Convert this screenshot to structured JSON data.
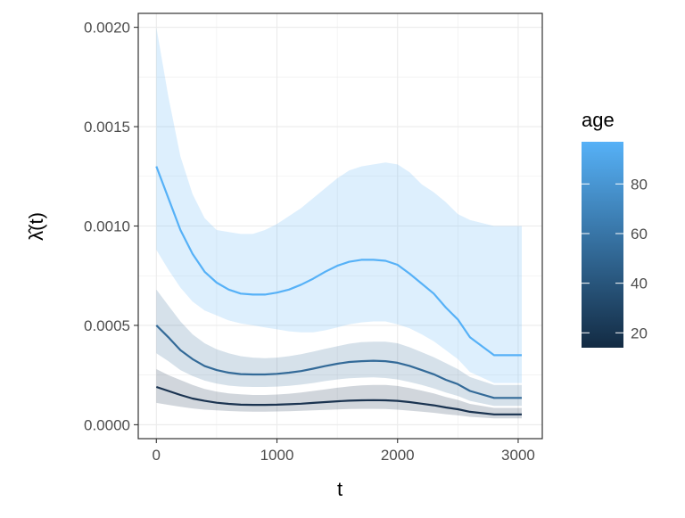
{
  "chart_data": {
    "type": "line",
    "xlabel": "t",
    "ylabel": "λ̂(t)",
    "xlim": [
      -150,
      3200
    ],
    "ylim": [
      -7e-05,
      0.00207
    ],
    "x_ticks": [
      0,
      1000,
      2000,
      3000
    ],
    "x_tick_labels": [
      "0",
      "1000",
      "2000",
      "3000"
    ],
    "y_ticks": [
      0,
      0.0005,
      0.001,
      0.0015,
      0.002
    ],
    "y_tick_labels": [
      "0.0000",
      "0.0005",
      "0.0010",
      "0.0015",
      "0.0020"
    ],
    "grid": true,
    "legend": {
      "title": "age",
      "type": "colorbar",
      "placement": "right",
      "range": [
        14,
        97
      ],
      "ticks": [
        20,
        40,
        60,
        80
      ],
      "tick_labels": [
        "20",
        "40",
        "60",
        "80"
      ],
      "color_low": "#132B43",
      "color_high": "#56B1F7"
    },
    "series": [
      {
        "age": 97,
        "color": "#56B1F7",
        "points": [
          [
            0,
            0.0013
          ],
          [
            100,
            0.00114
          ],
          [
            200,
            0.00098
          ],
          [
            300,
            0.00086
          ],
          [
            400,
            0.00077
          ],
          [
            500,
            0.000715
          ],
          [
            600,
            0.00068
          ],
          [
            700,
            0.00066
          ],
          [
            800,
            0.000655
          ],
          [
            900,
            0.000655
          ],
          [
            1000,
            0.000665
          ],
          [
            1100,
            0.00068
          ],
          [
            1200,
            0.000705
          ],
          [
            1300,
            0.000735
          ],
          [
            1400,
            0.00077
          ],
          [
            1500,
            0.0008
          ],
          [
            1600,
            0.00082
          ],
          [
            1700,
            0.00083
          ],
          [
            1800,
            0.00083
          ],
          [
            1900,
            0.000825
          ],
          [
            2000,
            0.000805
          ],
          [
            2100,
            0.00076
          ],
          [
            2200,
            0.00071
          ],
          [
            2300,
            0.00066
          ],
          [
            2400,
            0.00059
          ],
          [
            2500,
            0.00053
          ],
          [
            2600,
            0.00044
          ],
          [
            2800,
            0.00035
          ],
          [
            3030,
            0.00035
          ]
        ],
        "upper": [
          [
            0,
            0.002
          ],
          [
            100,
            0.00165
          ],
          [
            200,
            0.00135
          ],
          [
            300,
            0.00116
          ],
          [
            400,
            0.00104
          ],
          [
            500,
            0.00098
          ],
          [
            600,
            0.00097
          ],
          [
            700,
            0.00096
          ],
          [
            800,
            0.00096
          ],
          [
            900,
            0.00098
          ],
          [
            1000,
            0.00101
          ],
          [
            1100,
            0.00105
          ],
          [
            1200,
            0.00109
          ],
          [
            1300,
            0.00114
          ],
          [
            1400,
            0.00119
          ],
          [
            1500,
            0.00124
          ],
          [
            1600,
            0.00128
          ],
          [
            1700,
            0.0013
          ],
          [
            1800,
            0.00131
          ],
          [
            1900,
            0.00132
          ],
          [
            2000,
            0.00131
          ],
          [
            2100,
            0.00127
          ],
          [
            2200,
            0.00121
          ],
          [
            2300,
            0.00117
          ],
          [
            2400,
            0.00112
          ],
          [
            2500,
            0.00106
          ],
          [
            2600,
            0.00103
          ],
          [
            2800,
            0.001
          ],
          [
            3030,
            0.001
          ]
        ],
        "lower": [
          [
            0,
            0.00088
          ],
          [
            100,
            0.00078
          ],
          [
            200,
            0.00069
          ],
          [
            300,
            0.00062
          ],
          [
            400,
            0.000575
          ],
          [
            500,
            0.00055
          ],
          [
            600,
            0.000525
          ],
          [
            700,
            0.00051
          ],
          [
            800,
            0.0005
          ],
          [
            900,
            0.00049
          ],
          [
            1000,
            0.00048
          ],
          [
            1100,
            0.00047
          ],
          [
            1200,
            0.000465
          ],
          [
            1300,
            0.000465
          ],
          [
            1400,
            0.000475
          ],
          [
            1500,
            0.00049
          ],
          [
            1600,
            0.000505
          ],
          [
            1700,
            0.000515
          ],
          [
            1800,
            0.00052
          ],
          [
            1900,
            0.00052
          ],
          [
            2000,
            0.000505
          ],
          [
            2100,
            0.000485
          ],
          [
            2200,
            0.000455
          ],
          [
            2300,
            0.00042
          ],
          [
            2400,
            0.000375
          ],
          [
            2500,
            0.00033
          ],
          [
            2600,
            0.000265
          ],
          [
            2800,
            0.00021
          ],
          [
            3030,
            0.00021
          ]
        ]
      },
      {
        "age": 60,
        "color": "#336A98",
        "points": [
          [
            0,
            0.0005
          ],
          [
            100,
            0.00044
          ],
          [
            200,
            0.000375
          ],
          [
            300,
            0.00033
          ],
          [
            400,
            0.000295
          ],
          [
            500,
            0.000275
          ],
          [
            600,
            0.000262
          ],
          [
            700,
            0.000255
          ],
          [
            800,
            0.000253
          ],
          [
            900,
            0.000253
          ],
          [
            1000,
            0.000256
          ],
          [
            1100,
            0.000262
          ],
          [
            1200,
            0.00027
          ],
          [
            1300,
            0.000282
          ],
          [
            1400,
            0.000295
          ],
          [
            1500,
            0.000307
          ],
          [
            1600,
            0.000316
          ],
          [
            1700,
            0.00032
          ],
          [
            1800,
            0.000322
          ],
          [
            1900,
            0.00032
          ],
          [
            2000,
            0.000312
          ],
          [
            2100,
            0.000296
          ],
          [
            2200,
            0.000275
          ],
          [
            2300,
            0.000254
          ],
          [
            2400,
            0.000226
          ],
          [
            2500,
            0.000204
          ],
          [
            2600,
            0.00017
          ],
          [
            2800,
            0.000135
          ],
          [
            3030,
            0.000135
          ]
        ],
        "upper": [
          [
            0,
            0.00068
          ],
          [
            100,
            0.0006
          ],
          [
            200,
            0.00052
          ],
          [
            300,
            0.000455
          ],
          [
            400,
            0.00041
          ],
          [
            500,
            0.00038
          ],
          [
            600,
            0.00036
          ],
          [
            700,
            0.000345
          ],
          [
            800,
            0.000338
          ],
          [
            900,
            0.000335
          ],
          [
            1000,
            0.000338
          ],
          [
            1100,
            0.000345
          ],
          [
            1200,
            0.000355
          ],
          [
            1300,
            0.000368
          ],
          [
            1400,
            0.000382
          ],
          [
            1500,
            0.000395
          ],
          [
            1600,
            0.000408
          ],
          [
            1700,
            0.000416
          ],
          [
            1800,
            0.000418
          ],
          [
            1900,
            0.000418
          ],
          [
            2000,
            0.00041
          ],
          [
            2100,
            0.00039
          ],
          [
            2200,
            0.000365
          ],
          [
            2300,
            0.00034
          ],
          [
            2400,
            0.00031
          ],
          [
            2500,
            0.00028
          ],
          [
            2600,
            0.00024
          ],
          [
            2800,
            0.0002
          ],
          [
            3030,
            0.0002
          ]
        ],
        "lower": [
          [
            0,
            0.00036
          ],
          [
            100,
            0.00032
          ],
          [
            200,
            0.000275
          ],
          [
            300,
            0.000245
          ],
          [
            400,
            0.000222
          ],
          [
            500,
            0.000207
          ],
          [
            600,
            0.000197
          ],
          [
            700,
            0.000192
          ],
          [
            800,
            0.00019
          ],
          [
            900,
            0.00019
          ],
          [
            1000,
            0.000192
          ],
          [
            1100,
            0.000196
          ],
          [
            1200,
            0.000202
          ],
          [
            1300,
            0.00021
          ],
          [
            1400,
            0.00022
          ],
          [
            1500,
            0.000228
          ],
          [
            1600,
            0.000234
          ],
          [
            1700,
            0.000237
          ],
          [
            1800,
            0.000238
          ],
          [
            1900,
            0.000235
          ],
          [
            2000,
            0.000228
          ],
          [
            2100,
            0.000215
          ],
          [
            2200,
            0.0002
          ],
          [
            2300,
            0.000183
          ],
          [
            2400,
            0.000162
          ],
          [
            2500,
            0.000145
          ],
          [
            2600,
            0.00012
          ],
          [
            2800,
            9.5e-05
          ],
          [
            3030,
            9.5e-05
          ]
        ]
      },
      {
        "age": 20,
        "color": "#1A3350",
        "points": [
          [
            0,
            0.00019
          ],
          [
            100,
            0.00017
          ],
          [
            200,
            0.00015
          ],
          [
            300,
            0.000132
          ],
          [
            400,
            0.00012
          ],
          [
            500,
            0.000111
          ],
          [
            600,
            0.000105
          ],
          [
            700,
            0.000101
          ],
          [
            800,
            0.0001
          ],
          [
            900,
            0.0001
          ],
          [
            1000,
            0.000101
          ],
          [
            1100,
            0.000103
          ],
          [
            1200,
            0.000106
          ],
          [
            1300,
            0.00011
          ],
          [
            1400,
            0.000114
          ],
          [
            1500,
            0.000118
          ],
          [
            1600,
            0.000121
          ],
          [
            1700,
            0.000123
          ],
          [
            1800,
            0.000124
          ],
          [
            1900,
            0.000123
          ],
          [
            2000,
            0.00012
          ],
          [
            2100,
            0.000114
          ],
          [
            2200,
            0.000106
          ],
          [
            2300,
            9.8e-05
          ],
          [
            2400,
            8.7e-05
          ],
          [
            2500,
            7.8e-05
          ],
          [
            2600,
            6.5e-05
          ],
          [
            2800,
            5.2e-05
          ],
          [
            3030,
            5.2e-05
          ]
        ],
        "upper": [
          [
            0,
            0.00028
          ],
          [
            100,
            0.00025
          ],
          [
            200,
            0.000225
          ],
          [
            300,
            0.0002
          ],
          [
            400,
            0.00018
          ],
          [
            500,
            0.000167
          ],
          [
            600,
            0.000158
          ],
          [
            700,
            0.000153
          ],
          [
            800,
            0.00015
          ],
          [
            900,
            0.00015
          ],
          [
            1000,
            0.000152
          ],
          [
            1100,
            0.000156
          ],
          [
            1200,
            0.000162
          ],
          [
            1300,
            0.00017
          ],
          [
            1400,
            0.000178
          ],
          [
            1500,
            0.000186
          ],
          [
            1600,
            0.000193
          ],
          [
            1700,
            0.000198
          ],
          [
            1800,
            0.0002
          ],
          [
            1900,
            0.0002
          ],
          [
            2000,
            0.000195
          ],
          [
            2100,
            0.000185
          ],
          [
            2200,
            0.000172
          ],
          [
            2300,
            0.000158
          ],
          [
            2400,
            0.00014
          ],
          [
            2500,
            0.000125
          ],
          [
            2600,
            0.000105
          ],
          [
            2800,
            8.5e-05
          ],
          [
            3030,
            8.5e-05
          ]
        ],
        "lower": [
          [
            0,
            0.00011
          ],
          [
            100,
            0.0001
          ],
          [
            200,
            9e-05
          ],
          [
            300,
            8.2e-05
          ],
          [
            400,
            7.6e-05
          ],
          [
            500,
            7.2e-05
          ],
          [
            600,
            6.9e-05
          ],
          [
            700,
            6.7e-05
          ],
          [
            800,
            6.6e-05
          ],
          [
            900,
            6.6e-05
          ],
          [
            1000,
            6.7e-05
          ],
          [
            1100,
            6.8e-05
          ],
          [
            1200,
            7e-05
          ],
          [
            1300,
            7.2e-05
          ],
          [
            1400,
            7.5e-05
          ],
          [
            1500,
            7.7e-05
          ],
          [
            1600,
            7.9e-05
          ],
          [
            1700,
            8e-05
          ],
          [
            1800,
            8e-05
          ],
          [
            1900,
            7.9e-05
          ],
          [
            2000,
            7.6e-05
          ],
          [
            2100,
            7.1e-05
          ],
          [
            2200,
            6.6e-05
          ],
          [
            2300,
            6e-05
          ],
          [
            2400,
            5.3e-05
          ],
          [
            2500,
            4.7e-05
          ],
          [
            2600,
            4e-05
          ],
          [
            2800,
            3.2e-05
          ],
          [
            3030,
            3.2e-05
          ]
        ]
      }
    ]
  }
}
